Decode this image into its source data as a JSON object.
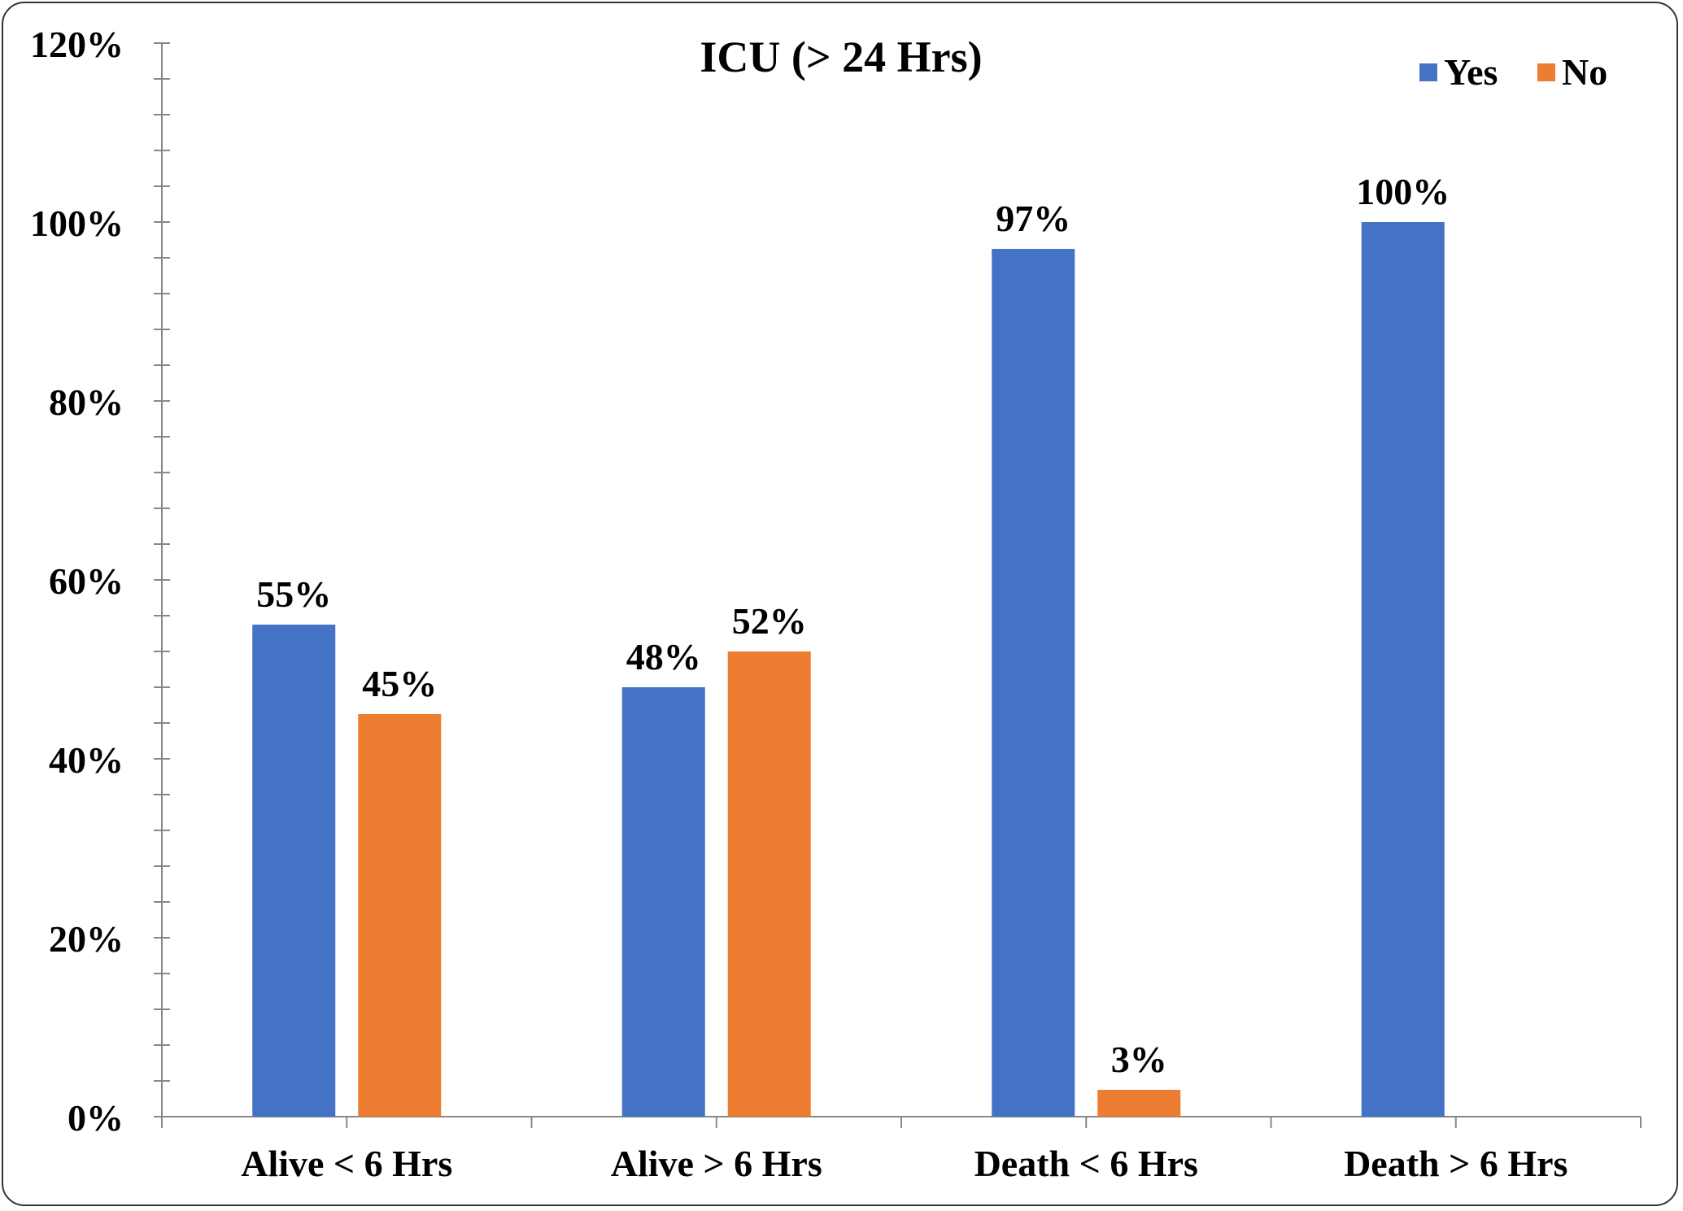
{
  "chart_data": {
    "type": "bar",
    "title": "ICU (> 24 Hrs)",
    "xlabel": "",
    "ylabel": "",
    "categories": [
      "Alive < 6 Hrs",
      "Alive > 6 Hrs",
      "Death < 6 Hrs",
      "Death > 6 Hrs"
    ],
    "series": [
      {
        "name": "Yes",
        "color": "#4472C4",
        "values": [
          55,
          48,
          97,
          100
        ],
        "labels": [
          "55%",
          "48%",
          "97%",
          "100%"
        ]
      },
      {
        "name": "No",
        "color": "#ED7D31",
        "values": [
          45,
          52,
          3,
          null
        ],
        "labels": [
          "45%",
          "52%",
          "3%",
          ""
        ]
      }
    ],
    "ylim": [
      0,
      120
    ],
    "yticks": [
      0,
      20,
      40,
      60,
      80,
      100,
      120
    ],
    "ytick_labels": [
      "0%",
      "20%",
      "40%",
      "60%",
      "80%",
      "100%",
      "120%"
    ],
    "grid": false,
    "legend_position": "top-right"
  }
}
